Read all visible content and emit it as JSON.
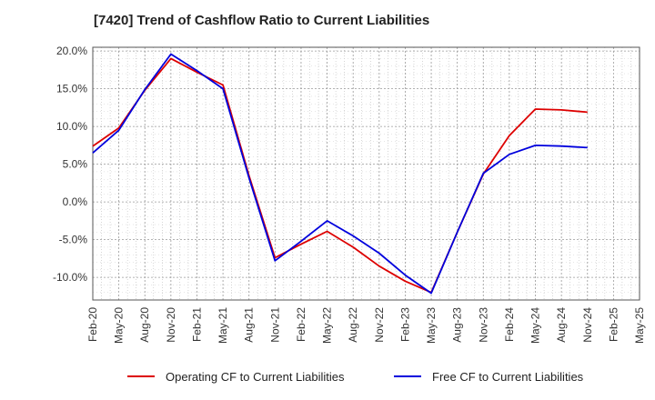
{
  "chart_data": {
    "type": "line",
    "title": "[7420]  Trend of Cashflow Ratio to Current Liabilities",
    "xlabel": "",
    "ylabel": "",
    "ylim": [
      -13,
      20.5
    ],
    "y_ticks": [
      "20.0%",
      "15.0%",
      "10.0%",
      "5.0%",
      "0.0%",
      "-5.0%",
      "-10.0%"
    ],
    "y_tick_values": [
      20,
      15,
      10,
      5,
      0,
      -5,
      -10
    ],
    "categories": [
      "Feb-20",
      "May-20",
      "Aug-20",
      "Nov-20",
      "Feb-21",
      "May-21",
      "Aug-21",
      "Nov-21",
      "Feb-22",
      "May-22",
      "Aug-22",
      "Nov-22",
      "Feb-23",
      "May-23",
      "Aug-23",
      "Nov-23",
      "Feb-24",
      "May-24",
      "Aug-24",
      "Nov-24",
      "Feb-25",
      "May-25"
    ],
    "grid": true,
    "legend_position": "bottom",
    "series": [
      {
        "name": "Operating CF to Current Liabilities",
        "color": "#dd0000",
        "values": [
          7.4,
          9.8,
          14.8,
          19.0,
          17.2,
          15.5,
          3.5,
          -7.4,
          -5.6,
          -3.9,
          -6.0,
          -8.5,
          -10.5,
          -12.0,
          -4.0,
          3.7,
          8.8,
          12.3,
          12.2,
          11.9,
          null,
          null
        ]
      },
      {
        "name": "Free CF to Current Liabilities",
        "color": "#0000dd",
        "values": [
          6.5,
          9.5,
          14.9,
          19.6,
          17.4,
          15.0,
          3.2,
          -7.8,
          -5.2,
          -2.5,
          -4.5,
          -6.8,
          -9.7,
          -12.1,
          -4.0,
          3.8,
          6.3,
          7.5,
          7.4,
          7.2,
          null,
          null
        ]
      }
    ]
  }
}
